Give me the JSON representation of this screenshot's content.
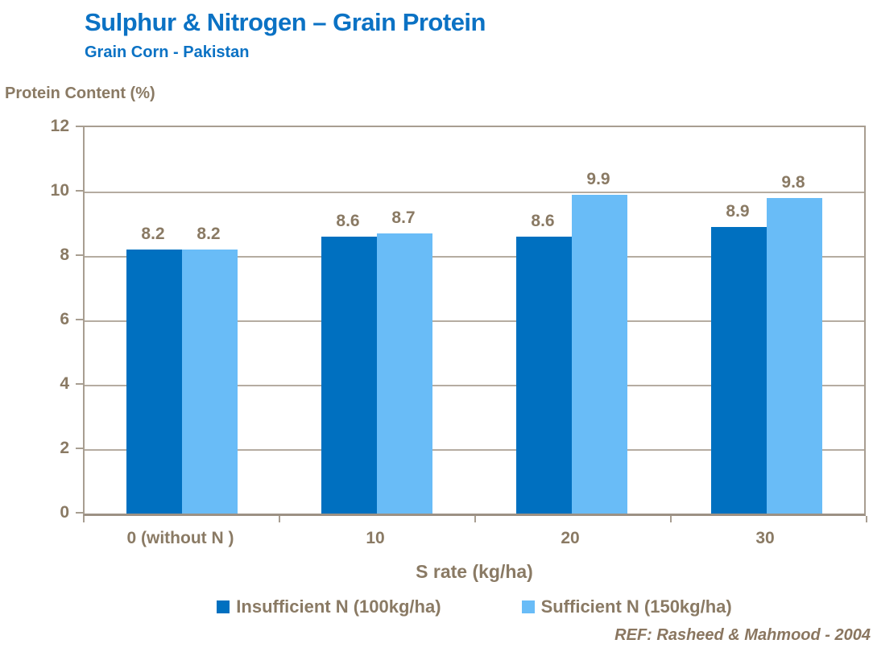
{
  "page": {
    "reference": "REF: Rasheed & Mahmood - 2004"
  },
  "chart_data": {
    "type": "bar",
    "title": "Sulphur & Nitrogen – Grain Protein",
    "subtitle": "Grain Corn - Pakistan",
    "categories": [
      "0 (without N )",
      "10",
      "20",
      "30"
    ],
    "series": [
      {
        "name": "Insufficient N (100kg/ha)",
        "color": "#0070C0",
        "values": [
          8.2,
          8.6,
          8.6,
          8.9
        ]
      },
      {
        "name": "Sufficient N (150kg/ha)",
        "color": "#69BCF7",
        "values": [
          8.2,
          8.7,
          9.9,
          9.8
        ]
      }
    ],
    "xlabel": "S rate (kg/ha)",
    "ylabel": "Protein Content (%)",
    "ylim": [
      0,
      12
    ],
    "ytick_step": 2,
    "yticks": [
      0,
      2,
      4,
      6,
      8,
      10,
      12
    ],
    "grid": true,
    "data_labels": true,
    "legend_position": "bottom",
    "colors": {
      "title_text": "#0B72C4",
      "axis_text": "#8A7A64",
      "gridline": "#B5ACA1",
      "axis_line": "#A89E91"
    }
  }
}
